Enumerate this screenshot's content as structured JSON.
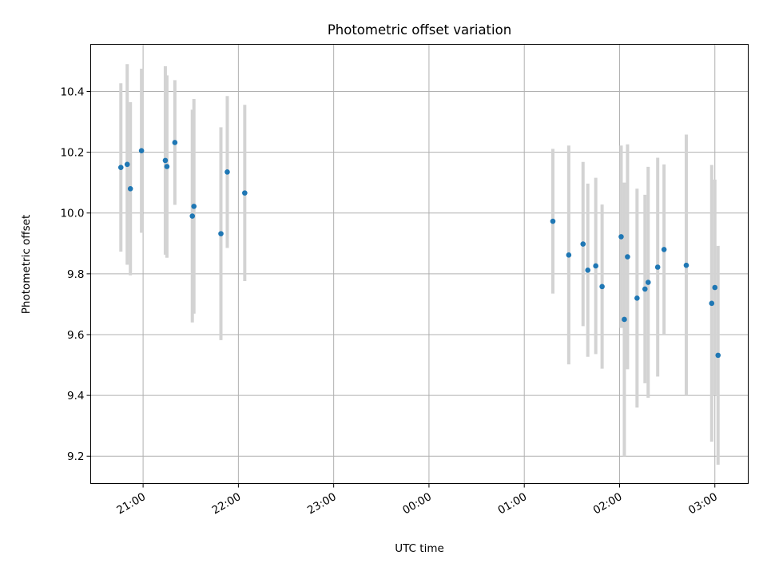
{
  "chart_data": {
    "type": "scatter",
    "title": "Photometric offset variation",
    "xlabel": "UTC time",
    "ylabel": "Photometric offset",
    "x_tick_labels": [
      "21:00",
      "22:00",
      "23:00",
      "00:00",
      "01:00",
      "02:00",
      "03:00"
    ],
    "y_tick_labels": [
      "9.2",
      "9.4",
      "9.6",
      "9.8",
      "10.0",
      "10.2",
      "10.4"
    ],
    "y_ticks": [
      9.2,
      9.4,
      9.6,
      9.8,
      10.0,
      10.2,
      10.4
    ],
    "xlim": [
      "20:27",
      "03:21"
    ],
    "ylim": [
      9.11,
      10.555
    ],
    "grid": true,
    "point_color": "#1f77b4",
    "error_bar_color": "#d3d3d3",
    "series": [
      {
        "points": [
          {
            "x": "20:46",
            "y": 10.15,
            "err": 0.277
          },
          {
            "x": "20:50",
            "y": 10.16,
            "err": 0.33
          },
          {
            "x": "20:52",
            "y": 10.08,
            "err": 0.285
          },
          {
            "x": "20:59",
            "y": 10.205,
            "err": 0.27
          },
          {
            "x": "21:14",
            "y": 10.173,
            "err": 0.31
          },
          {
            "x": "21:15",
            "y": 10.153,
            "err": 0.3
          },
          {
            "x": "21:20",
            "y": 10.232,
            "err": 0.205
          },
          {
            "x": "21:31",
            "y": 9.99,
            "err": 0.35
          },
          {
            "x": "21:32",
            "y": 10.022,
            "err": 0.353
          },
          {
            "x": "21:49",
            "y": 9.932,
            "err": 0.35
          },
          {
            "x": "21:53",
            "y": 10.135,
            "err": 0.25
          },
          {
            "x": "22:04",
            "y": 10.066,
            "err": 0.29
          },
          {
            "x": "01:18",
            "y": 9.973,
            "err": 0.238
          },
          {
            "x": "01:28",
            "y": 9.862,
            "err": 0.36
          },
          {
            "x": "01:37",
            "y": 9.898,
            "err": 0.27
          },
          {
            "x": "01:40",
            "y": 9.812,
            "err": 0.285
          },
          {
            "x": "01:45",
            "y": 9.826,
            "err": 0.29
          },
          {
            "x": "01:49",
            "y": 9.758,
            "err": 0.27
          },
          {
            "x": "02:01",
            "y": 9.922,
            "err": 0.3
          },
          {
            "x": "02:03",
            "y": 9.65,
            "err": 0.45
          },
          {
            "x": "02:05",
            "y": 9.856,
            "err": 0.37
          },
          {
            "x": "02:11",
            "y": 9.72,
            "err": 0.36
          },
          {
            "x": "02:16",
            "y": 9.75,
            "err": 0.31
          },
          {
            "x": "02:18",
            "y": 9.772,
            "err": 0.38
          },
          {
            "x": "02:24",
            "y": 9.822,
            "err": 0.36
          },
          {
            "x": "02:28",
            "y": 9.88,
            "err": 0.28
          },
          {
            "x": "02:42",
            "y": 9.828,
            "err": 0.43
          },
          {
            "x": "02:58",
            "y": 9.703,
            "err": 0.455
          },
          {
            "x": "03:00",
            "y": 9.755,
            "err": 0.355
          },
          {
            "x": "03:02",
            "y": 9.532,
            "err": 0.36
          }
        ]
      }
    ]
  }
}
